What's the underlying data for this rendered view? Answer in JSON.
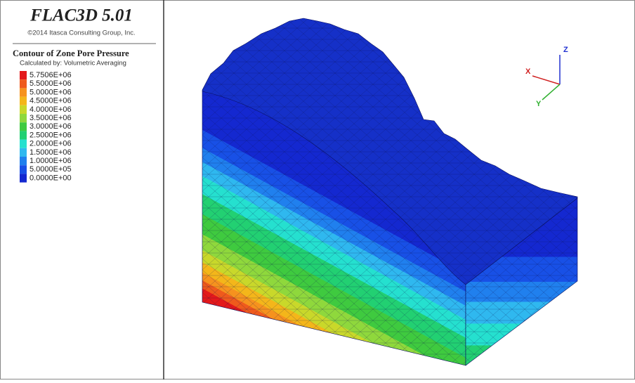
{
  "header": {
    "title": "FLAC3D 5.01",
    "copyright": "©2014 Itasca Consulting Group, Inc."
  },
  "legend": {
    "title": "Contour of Zone Pore Pressure",
    "subtitle": "Calculated by: Volumetric Averaging",
    "items": [
      {
        "label": "5.7506E+06",
        "color": "#e3191b"
      },
      {
        "label": "5.5000E+06",
        "color": "#ef5a1c"
      },
      {
        "label": "5.0000E+06",
        "color": "#f6921e"
      },
      {
        "label": "4.5000E+06",
        "color": "#f4b61a"
      },
      {
        "label": "4.0000E+06",
        "color": "#c9d82a"
      },
      {
        "label": "3.5000E+06",
        "color": "#8fd83c"
      },
      {
        "label": "3.0000E+06",
        "color": "#3fca3f"
      },
      {
        "label": "2.5000E+06",
        "color": "#22d072"
      },
      {
        "label": "2.0000E+06",
        "color": "#25e0cf"
      },
      {
        "label": "1.5000E+06",
        "color": "#2fb8ef"
      },
      {
        "label": "1.0000E+06",
        "color": "#2080ee"
      },
      {
        "label": "5.0000E+05",
        "color": "#1850e6"
      },
      {
        "label": "0.0000E+00",
        "color": "#1428d0"
      }
    ]
  },
  "axes": {
    "x": "X",
    "y": "Y",
    "z": "Z"
  }
}
